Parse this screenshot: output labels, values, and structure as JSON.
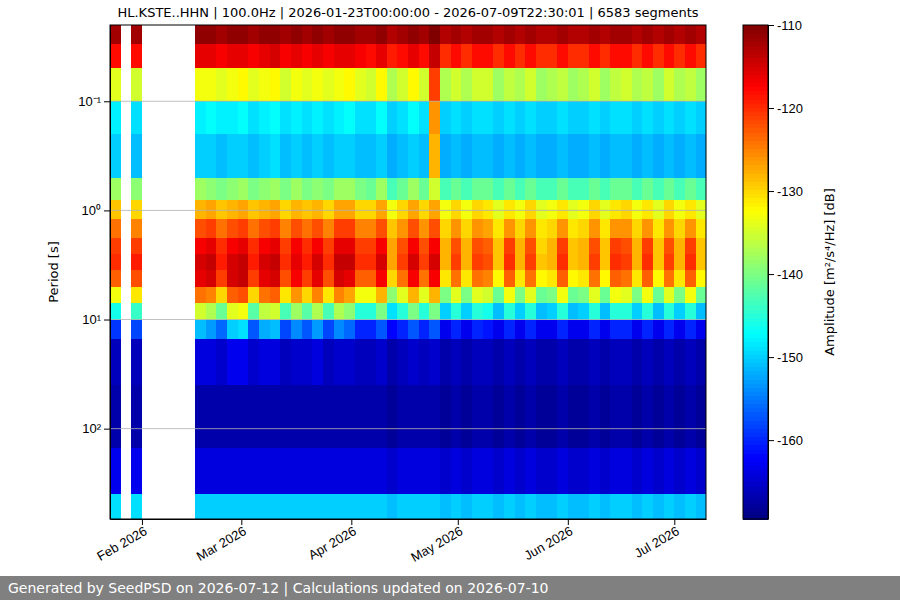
{
  "chart_data": {
    "type": "heatmap",
    "title": "HL.KSTE..HHN | 100.0Hz | 2026-01-23T00:00:00 - 2026-07-09T22:30:01 | 6583 segments",
    "ylabel": "Period [s]",
    "colorbar_label": "Amplitude [m²/s⁴/Hz] [dB]",
    "footer": "Generated by SeedPSD on 2026-07-12 | Calculations updated on 2026-07-10",
    "log": "y",
    "grid": "y",
    "xlim": [
      "2026-01-23T00:00:00",
      "2026-07-09T22:30:01"
    ],
    "ylim": [
      0.02,
      673
    ],
    "clim": [
      -169.5,
      -110
    ],
    "cticks": [
      -160,
      -150,
      -140,
      -130,
      -120,
      -110
    ],
    "xticks": [
      {
        "value": "2026-02-01T00:00:00",
        "label": "Feb 2026"
      },
      {
        "value": "2026-03-01T00:00:00",
        "label": "Mar 2026"
      },
      {
        "value": "2026-04-01T00:00:00",
        "label": "Apr 2026"
      },
      {
        "value": "2026-05-01T00:00:00",
        "label": "May 2026"
      },
      {
        "value": "2026-06-01T00:00:00",
        "label": "Jun 2026"
      },
      {
        "value": "2026-07-01T00:00:00",
        "label": "Jul 2026"
      }
    ],
    "yticks": [
      {
        "value": 0.1,
        "label": "10⁻¹"
      },
      {
        "value": 1,
        "label": "10⁰"
      },
      {
        "value": 10,
        "label": "10¹"
      },
      {
        "value": 100,
        "label": "10²"
      }
    ],
    "x_edges": [
      "2026-01-23T00:00:00",
      "2026-01-26T00:00:00",
      "2026-01-29T00:00:00",
      "2026-02-01T00:00:00",
      "2026-02-04T00:00:00",
      "2026-02-07T00:00:00",
      "2026-02-10T00:00:00",
      "2026-02-13T00:00:00",
      "2026-02-16T00:00:00",
      "2026-02-19T00:00:00",
      "2026-02-22T00:00:00",
      "2026-02-25T00:00:00",
      "2026-02-28T00:00:00",
      "2026-03-03T00:00:00",
      "2026-03-06T00:00:00",
      "2026-03-09T00:00:00",
      "2026-03-12T00:00:00",
      "2026-03-15T00:00:00",
      "2026-03-18T00:00:00",
      "2026-03-21T00:00:00",
      "2026-03-24T00:00:00",
      "2026-03-27T00:00:00",
      "2026-03-30T00:00:00",
      "2026-04-02T00:00:00",
      "2026-04-05T00:00:00",
      "2026-04-08T00:00:00",
      "2026-04-11T00:00:00",
      "2026-04-14T00:00:00",
      "2026-04-17T00:00:00",
      "2026-04-20T00:00:00",
      "2026-04-23T00:00:00",
      "2026-04-26T00:00:00",
      "2026-04-29T00:00:00",
      "2026-05-02T00:00:00",
      "2026-05-05T00:00:00",
      "2026-05-08T00:00:00",
      "2026-05-11T00:00:00",
      "2026-05-14T00:00:00",
      "2026-05-17T00:00:00",
      "2026-05-20T00:00:00",
      "2026-05-23T00:00:00",
      "2026-05-26T00:00:00",
      "2026-05-29T00:00:00",
      "2026-06-01T00:00:00",
      "2026-06-04T00:00:00",
      "2026-06-07T00:00:00",
      "2026-06-10T00:00:00",
      "2026-06-13T00:00:00",
      "2026-06-16T00:00:00",
      "2026-06-19T00:00:00",
      "2026-06-22T00:00:00",
      "2026-06-25T00:00:00",
      "2026-06-28T00:00:00",
      "2026-07-01T00:00:00",
      "2026-07-04T00:00:00",
      "2026-07-07T00:00:00",
      "2026-07-09T22:30:01"
    ],
    "y_edges": [
      0.02,
      0.03,
      0.05,
      0.1,
      0.2,
      0.5,
      0.8,
      1.2,
      1.8,
      2.5,
      3.5,
      5,
      7,
      10,
      15,
      40,
      150,
      400,
      673
    ],
    "values": [
      [
        -112,
        -118,
        -134,
        -148,
        -150,
        -138,
        -129,
        -124,
        -121,
        -120,
        -123,
        -133,
        -146,
        -159,
        -166,
        -167,
        -163,
        -149
      ],
      null,
      [
        -112,
        -118,
        -135,
        -149,
        -151,
        -139,
        -130,
        -125,
        -121,
        -119,
        -122,
        -131,
        -144,
        -158,
        -166,
        -167,
        -163,
        -149
      ],
      null,
      null,
      null,
      null,
      null,
      [
        -111,
        -116,
        -133,
        -148,
        -150,
        -138,
        -128,
        -122,
        -117,
        -115,
        -116,
        -124,
        -135,
        -151,
        -164,
        -167,
        -164,
        -150
      ],
      [
        -111,
        -116,
        -133,
        -147,
        -150,
        -139,
        -127,
        -121,
        -116,
        -114,
        -115,
        -125,
        -137,
        -153,
        -164,
        -167,
        -164,
        -150
      ],
      [
        -112,
        -117,
        -134,
        -148,
        -151,
        -140,
        -129,
        -124,
        -120,
        -119,
        -121,
        -130,
        -141,
        -156,
        -165,
        -167,
        -164,
        -150
      ],
      [
        -111,
        -116,
        -133,
        -148,
        -150,
        -139,
        -128,
        -122,
        -117,
        -115,
        -115,
        -123,
        -134,
        -150,
        -163,
        -167,
        -164,
        -150
      ],
      [
        -111,
        -116,
        -132,
        -147,
        -150,
        -138,
        -127,
        -121,
        -116,
        -114,
        -114,
        -122,
        -133,
        -149,
        -163,
        -167,
        -164,
        -150
      ],
      [
        -112,
        -117,
        -134,
        -149,
        -151,
        -140,
        -129,
        -124,
        -120,
        -119,
        -121,
        -130,
        -142,
        -157,
        -165,
        -167,
        -164,
        -150
      ],
      [
        -111,
        -116,
        -133,
        -148,
        -150,
        -139,
        -128,
        -122,
        -117,
        -115,
        -116,
        -124,
        -136,
        -152,
        -164,
        -167,
        -164,
        -150
      ],
      [
        -111,
        -115,
        -132,
        -147,
        -149,
        -138,
        -127,
        -121,
        -116,
        -114,
        -115,
        -123,
        -135,
        -151,
        -164,
        -167,
        -164,
        -150
      ],
      [
        -112,
        -117,
        -135,
        -149,
        -151,
        -140,
        -130,
        -125,
        -121,
        -120,
        -122,
        -131,
        -143,
        -158,
        -166,
        -167,
        -164,
        -150
      ],
      [
        -111,
        -116,
        -133,
        -148,
        -150,
        -138,
        -128,
        -122,
        -117,
        -116,
        -117,
        -126,
        -138,
        -154,
        -165,
        -167,
        -164,
        -150
      ],
      [
        -112,
        -117,
        -134,
        -149,
        -151,
        -140,
        -129,
        -124,
        -120,
        -119,
        -121,
        -130,
        -142,
        -157,
        -165,
        -167,
        -164,
        -150
      ],
      [
        -111,
        -116,
        -133,
        -148,
        -150,
        -139,
        -128,
        -122,
        -117,
        -115,
        -116,
        -125,
        -137,
        -153,
        -164,
        -167,
        -164,
        -150
      ],
      [
        -112,
        -117,
        -134,
        -149,
        -151,
        -140,
        -130,
        -125,
        -121,
        -120,
        -122,
        -131,
        -143,
        -158,
        -166,
        -167,
        -164,
        -150
      ],
      [
        -111,
        -116,
        -133,
        -148,
        -150,
        -138,
        -127,
        -121,
        -116,
        -114,
        -115,
        -125,
        -137,
        -154,
        -165,
        -167,
        -164,
        -150
      ],
      [
        -111,
        -116,
        -132,
        -147,
        -150,
        -138,
        -127,
        -121,
        -116,
        -114,
        -116,
        -127,
        -139,
        -156,
        -165,
        -167,
        -164,
        -150
      ],
      [
        -112,
        -117,
        -134,
        -149,
        -151,
        -140,
        -130,
        -125,
        -121,
        -120,
        -123,
        -133,
        -145,
        -160,
        -166,
        -167,
        -164,
        -150
      ],
      [
        -112,
        -118,
        -135,
        -149,
        -151,
        -141,
        -130,
        -125,
        -121,
        -120,
        -123,
        -133,
        -145,
        -160,
        -166,
        -167,
        -164,
        -150
      ],
      [
        -111,
        -116,
        -132,
        -147,
        -150,
        -138,
        -127,
        -122,
        -117,
        -115,
        -117,
        -128,
        -140,
        -157,
        -165,
        -167,
        -164,
        -150
      ],
      [
        -113,
        -119,
        -137,
        -150,
        -152,
        -143,
        -133,
        -129,
        -127,
        -127,
        -130,
        -139,
        -149,
        -162,
        -167,
        -168,
        -165,
        -151
      ],
      [
        -112,
        -118,
        -135,
        -149,
        -151,
        -141,
        -130,
        -126,
        -122,
        -121,
        -124,
        -134,
        -145,
        -160,
        -166,
        -167,
        -164,
        -150
      ],
      [
        -111,
        -116,
        -132,
        -147,
        -150,
        -138,
        -127,
        -122,
        -117,
        -115,
        -117,
        -128,
        -140,
        -157,
        -165,
        -167,
        -164,
        -150
      ],
      [
        -112,
        -118,
        -135,
        -149,
        -151,
        -141,
        -130,
        -126,
        -122,
        -121,
        -124,
        -134,
        -145,
        -160,
        -166,
        -167,
        -164,
        -150
      ],
      [
        -110,
        -114,
        -121,
        -126,
        -128,
        -135,
        -127,
        -122,
        -117,
        -115,
        -117,
        -128,
        -140,
        -157,
        -165,
        -167,
        -164,
        -150
      ],
      [
        -113,
        -120,
        -137,
        -150,
        -152,
        -143,
        -133,
        -130,
        -128,
        -128,
        -131,
        -140,
        -150,
        -163,
        -167,
        -168,
        -165,
        -151
      ],
      [
        -112,
        -118,
        -135,
        -149,
        -151,
        -141,
        -130,
        -126,
        -122,
        -121,
        -124,
        -134,
        -145,
        -160,
        -166,
        -167,
        -164,
        -150
      ],
      [
        -113,
        -120,
        -137,
        -150,
        -152,
        -143,
        -133,
        -130,
        -128,
        -128,
        -131,
        -140,
        -150,
        -163,
        -167,
        -168,
        -165,
        -151
      ],
      [
        -112,
        -118,
        -135,
        -149,
        -151,
        -141,
        -130,
        -126,
        -122,
        -121,
        -124,
        -134,
        -145,
        -160,
        -166,
        -167,
        -164,
        -150
      ],
      [
        -112,
        -118,
        -135,
        -149,
        -151,
        -141,
        -131,
        -127,
        -123,
        -122,
        -125,
        -135,
        -146,
        -161,
        -166,
        -167,
        -164,
        -150
      ],
      [
        -113,
        -120,
        -138,
        -150,
        -152,
        -143,
        -134,
        -131,
        -129,
        -129,
        -132,
        -141,
        -151,
        -163,
        -167,
        -168,
        -165,
        -151
      ],
      [
        -112,
        -118,
        -136,
        -149,
        -151,
        -141,
        -131,
        -126,
        -121,
        -120,
        -123,
        -133,
        -145,
        -160,
        -166,
        -167,
        -164,
        -150
      ],
      [
        -113,
        -120,
        -137,
        -150,
        -152,
        -143,
        -133,
        -130,
        -128,
        -128,
        -131,
        -140,
        -150,
        -163,
        -167,
        -168,
        -165,
        -151
      ],
      [
        -112,
        -118,
        -135,
        -149,
        -151,
        -141,
        -130,
        -126,
        -122,
        -121,
        -124,
        -134,
        -145,
        -160,
        -166,
        -167,
        -164,
        -150
      ],
      [
        -113,
        -120,
        -138,
        -150,
        -152,
        -143,
        -134,
        -131,
        -130,
        -129,
        -132,
        -141,
        -151,
        -163,
        -167,
        -168,
        -165,
        -151
      ],
      [
        -113,
        -120,
        -137,
        -150,
        -152,
        -143,
        -133,
        -130,
        -128,
        -128,
        -131,
        -140,
        -150,
        -163,
        -167,
        -168,
        -165,
        -151
      ],
      [
        -112,
        -118,
        -136,
        -149,
        -151,
        -141,
        -131,
        -126,
        -121,
        -120,
        -123,
        -133,
        -145,
        -160,
        -166,
        -167,
        -164,
        -150
      ],
      [
        -113,
        -120,
        -138,
        -150,
        -152,
        -143,
        -134,
        -131,
        -129,
        -129,
        -132,
        -141,
        -151,
        -163,
        -167,
        -168,
        -165,
        -151
      ],
      [
        -113,
        -120,
        -137,
        -150,
        -152,
        -143,
        -133,
        -130,
        -128,
        -128,
        -131,
        -140,
        -150,
        -163,
        -167,
        -168,
        -165,
        -151
      ],
      [
        -112,
        -118,
        -135,
        -149,
        -151,
        -141,
        -130,
        -126,
        -122,
        -121,
        -124,
        -134,
        -145,
        -160,
        -166,
        -167,
        -164,
        -150
      ],
      [
        -113,
        -120,
        -138,
        -150,
        -152,
        -143,
        -134,
        -131,
        -129,
        -129,
        -132,
        -141,
        -151,
        -163,
        -167,
        -168,
        -165,
        -151
      ],
      [
        -112,
        -118,
        -136,
        -149,
        -151,
        -141,
        -131,
        -126,
        -121,
        -120,
        -123,
        -133,
        -145,
        -160,
        -166,
        -167,
        -164,
        -150
      ],
      [
        -112,
        -118,
        -135,
        -149,
        -151,
        -141,
        -130,
        -126,
        -122,
        -121,
        -124,
        -134,
        -145,
        -160,
        -166,
        -167,
        -164,
        -150
      ],
      [
        -113,
        -120,
        -137,
        -150,
        -152,
        -143,
        -133,
        -130,
        -128,
        -128,
        -131,
        -140,
        -150,
        -163,
        -167,
        -168,
        -165,
        -151
      ],
      [
        -112,
        -118,
        -136,
        -149,
        -151,
        -141,
        -131,
        -126,
        -121,
        -120,
        -123,
        -133,
        -145,
        -160,
        -166,
        -167,
        -164,
        -150
      ],
      [
        -113,
        -120,
        -138,
        -150,
        -152,
        -143,
        -134,
        -131,
        -129,
        -129,
        -132,
        -141,
        -151,
        -163,
        -167,
        -168,
        -165,
        -151
      ],
      [
        -112,
        -118,
        -135,
        -149,
        -151,
        -141,
        -130,
        -126,
        -122,
        -121,
        -124,
        -134,
        -145,
        -160,
        -166,
        -167,
        -164,
        -150
      ],
      [
        -113,
        -120,
        -137,
        -150,
        -152,
        -143,
        -133,
        -130,
        -128,
        -128,
        -131,
        -140,
        -150,
        -163,
        -167,
        -168,
        -165,
        -151
      ],
      [
        -112,
        -118,
        -136,
        -149,
        -151,
        -141,
        -131,
        -126,
        -121,
        -120,
        -123,
        -133,
        -145,
        -160,
        -166,
        -167,
        -164,
        -150
      ],
      [
        -113,
        -120,
        -138,
        -150,
        -152,
        -143,
        -134,
        -131,
        -129,
        -129,
        -132,
        -141,
        -151,
        -163,
        -167,
        -168,
        -165,
        -151
      ]
    ]
  }
}
